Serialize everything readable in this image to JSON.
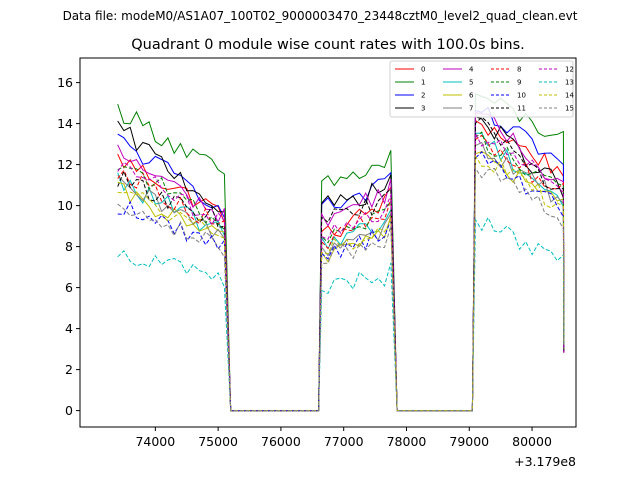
{
  "figure": {
    "suptitle": "Data file: modeM0/AS1A07_100T02_9000003470_23448cztM0_level2_quad_clean.evt",
    "title": "Quadrant 0 module wise count rates with 100.0s bins.",
    "x_offset_label": "+3.179e8"
  },
  "chart_data": {
    "type": "line",
    "title": "Quadrant 0 module wise count rates with 100.0s bins.",
    "xlabel": "",
    "ylabel": "",
    "x_offset": 317900000,
    "xlim": [
      72800,
      80700
    ],
    "ylim": [
      -0.8,
      17.2
    ],
    "xticks": [
      74000,
      75000,
      76000,
      77000,
      78000,
      79000,
      80000
    ],
    "yticks": [
      0,
      2,
      4,
      6,
      8,
      10,
      12,
      14,
      16
    ],
    "legend_position": "top-right",
    "legend_columns": 4,
    "gti_segments": [
      {
        "start": 73400,
        "end": 75100
      },
      {
        "start": 76650,
        "end": 77750
      },
      {
        "start": 79100,
        "end": 80500
      }
    ],
    "gap_ranges": [
      [
        75200,
        76600
      ],
      [
        77850,
        79050
      ]
    ],
    "series": [
      {
        "name": "0",
        "color": "#ff0000",
        "dash": "solid",
        "levels": [
          12.3,
          9.6,
          8.4,
          10.3,
          14.2,
          11.6
        ]
      },
      {
        "name": "1",
        "color": "#008000",
        "dash": "solid",
        "levels": [
          14.7,
          11.5,
          10.9,
          12.1,
          15.5,
          13.2
        ]
      },
      {
        "name": "2",
        "color": "#0000ff",
        "dash": "solid",
        "levels": [
          13.2,
          9.9,
          9.8,
          11.0,
          14.7,
          12.0
        ]
      },
      {
        "name": "3",
        "color": "#000000",
        "dash": "solid",
        "levels": [
          13.8,
          9.7,
          9.9,
          10.9,
          14.4,
          10.8
        ]
      },
      {
        "name": "4",
        "color": "#bf00bf",
        "dash": "solid",
        "levels": [
          12.6,
          9.4,
          9.4,
          10.7,
          14.6,
          11.0
        ]
      },
      {
        "name": "5",
        "color": "#00bfbf",
        "dash": "solid",
        "levels": [
          11.2,
          8.6,
          8.3,
          9.2,
          13.6,
          10.2
        ]
      },
      {
        "name": "6",
        "color": "#bfbf00",
        "dash": "solid",
        "levels": [
          10.7,
          8.3,
          7.6,
          8.9,
          12.6,
          10.0
        ]
      },
      {
        "name": "7",
        "color": "#808080",
        "dash": "solid",
        "levels": [
          11.0,
          8.5,
          7.9,
          9.0,
          13.0,
          10.2
        ]
      },
      {
        "name": "8",
        "color": "#ff0000",
        "dash": "dashed",
        "levels": [
          11.8,
          8.9,
          8.2,
          9.7,
          13.3,
          10.6
        ]
      },
      {
        "name": "9",
        "color": "#008000",
        "dash": "dashed",
        "levels": [
          12.2,
          9.0,
          8.5,
          9.6,
          13.4,
          10.9
        ]
      },
      {
        "name": "10",
        "color": "#0000ff",
        "dash": "dashed",
        "levels": [
          10.0,
          8.0,
          7.7,
          8.7,
          12.4,
          9.8
        ]
      },
      {
        "name": "11",
        "color": "#000000",
        "dash": "dashed",
        "levels": [
          11.3,
          9.2,
          9.5,
          10.2,
          14.1,
          10.6
        ]
      },
      {
        "name": "12",
        "color": "#bf00bf",
        "dash": "dashed",
        "levels": [
          12.0,
          9.0,
          8.6,
          9.9,
          13.6,
          10.8
        ]
      },
      {
        "name": "13",
        "color": "#00bfbf",
        "dash": "dashed",
        "levels": [
          7.8,
          6.3,
          6.0,
          6.6,
          9.4,
          7.2
        ]
      },
      {
        "name": "14",
        "color": "#bfbf00",
        "dash": "dashed",
        "levels": [
          10.9,
          8.2,
          7.9,
          8.7,
          12.5,
          10.0
        ]
      },
      {
        "name": "15",
        "color": "#808080",
        "dash": "dashed",
        "levels": [
          10.3,
          7.8,
          7.4,
          8.4,
          11.9,
          9.3
        ]
      }
    ]
  }
}
